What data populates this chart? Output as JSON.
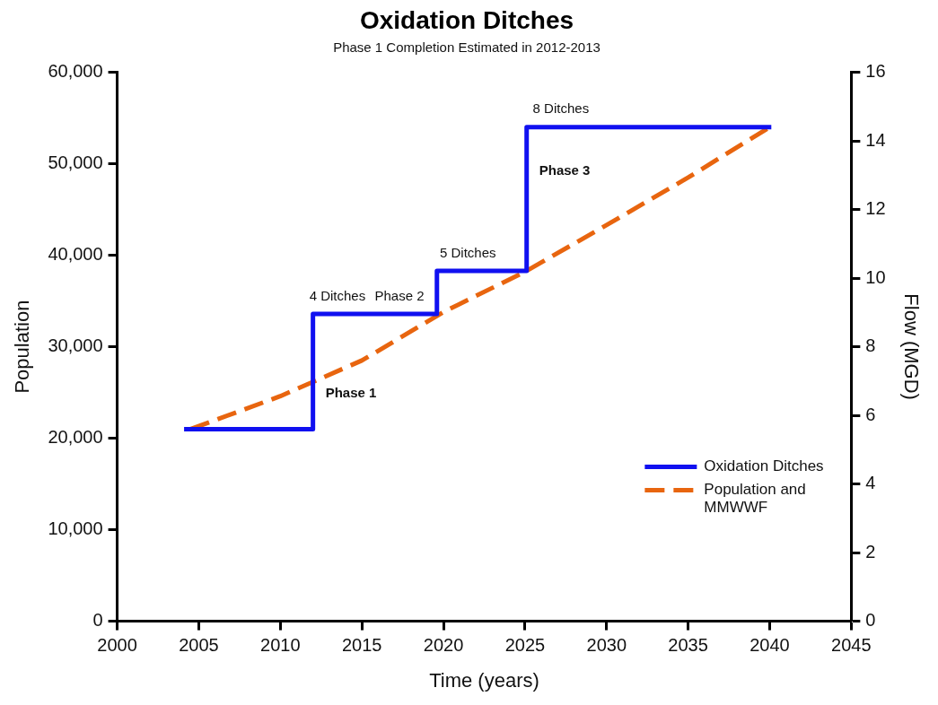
{
  "chart_data": {
    "type": "line",
    "title": "Oxidation Ditches",
    "subtitle": "Phase 1 Completion Estimated in 2012-2013",
    "xlabel": "Time (years)",
    "ylabel": "Population",
    "y2label": "Flow (MGD)",
    "series": [
      {
        "name": "Oxidation Ditches",
        "type": "step",
        "color": "#1010f0",
        "line_style": "solid",
        "x": [
          2004.1,
          2012,
          2019.6,
          2025.1,
          2040.1
        ],
        "values": [
          21000,
          33600,
          38300,
          54000,
          54000
        ]
      },
      {
        "name": "Population and MMWWF",
        "type": "line",
        "color": "#e8650f",
        "line_style": "dashed",
        "x": [
          2004.5,
          2010,
          2015,
          2020,
          2025,
          2030,
          2035,
          2040
        ],
        "values": [
          21000,
          24600,
          28500,
          33800,
          38200,
          43300,
          48500,
          54000
        ]
      }
    ],
    "xlim": [
      2000,
      2045
    ],
    "xticks": [
      2000,
      2005,
      2010,
      2015,
      2020,
      2025,
      2030,
      2035,
      2040,
      2045
    ],
    "ylim": [
      0,
      60000
    ],
    "yticks": [
      0,
      {
        "value": 10000,
        "label": "10,000"
      },
      {
        "value": 20000,
        "label": "20,000"
      },
      {
        "value": 30000,
        "label": "30,000"
      },
      {
        "value": 40000,
        "label": "40,000"
      },
      {
        "value": 50000,
        "label": "50,000"
      },
      {
        "value": 60000,
        "label": "60,000"
      }
    ],
    "y2lim": [
      0,
      16
    ],
    "y2ticks": [
      0,
      2,
      4,
      6,
      8,
      10,
      12,
      14,
      16
    ],
    "annotations": [
      {
        "text": "4 Ditches",
        "x": 2013.5,
        "y": 33600
      },
      {
        "text": "Phase 2",
        "x": 2017.3,
        "y": 33600
      },
      {
        "text": "5 Ditches",
        "x": 2021.5,
        "y": 38300
      },
      {
        "text": "8 Ditches",
        "x": 2027.2,
        "y": 54000
      },
      {
        "text": "Phase 1",
        "x": 2012,
        "y": 24900
      },
      {
        "text": "Phase 3",
        "x": 2025.1,
        "y": 49200
      }
    ],
    "grid": false,
    "legend": "bottom right",
    "marker": "none"
  }
}
